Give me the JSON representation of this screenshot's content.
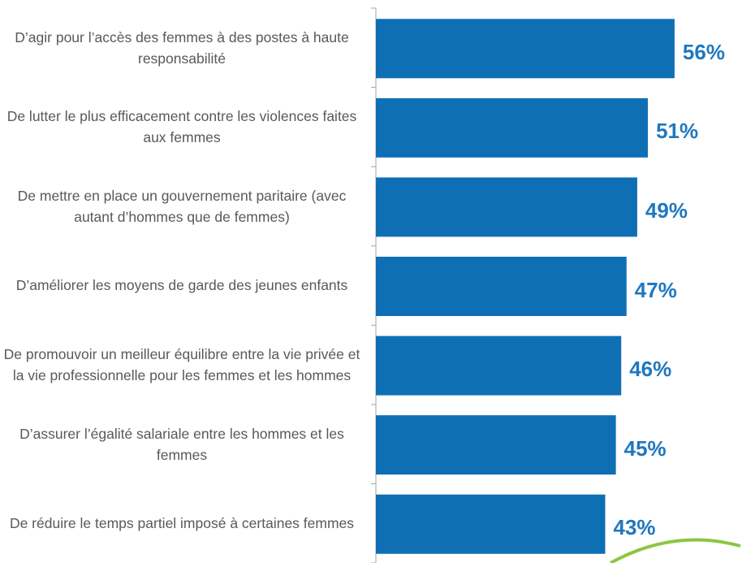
{
  "chart_data": {
    "type": "barh",
    "categories": [
      "D’agir pour l’accès des femmes à des postes à haute responsabilité",
      "De lutter le plus efficacement contre les violences faites aux femmes",
      "De mettre en place un gouvernement paritaire (avec autant d’hommes que de femmes)",
      "D’améliorer les moyens de garde des jeunes enfants",
      "De promouvoir un meilleur équilibre entre la vie privée et la vie professionnelle pour les femmes et les hommes",
      "D’assurer l’égalité salariale entre les hommes et les femmes",
      "De réduire le temps partiel imposé à certaines femmes"
    ],
    "values": [
      56,
      51,
      49,
      47,
      46,
      45,
      43
    ],
    "value_labels": [
      "56%",
      "51%",
      "49%",
      "47%",
      "46%",
      "45%",
      "43%"
    ],
    "color": "#0f6fb5"
  }
}
